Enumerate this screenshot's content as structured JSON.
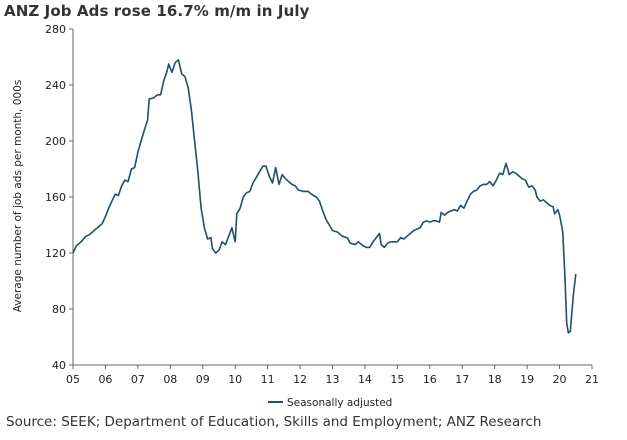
{
  "title": "ANZ Job Ads rose 16.7% m/m in July",
  "source": "Source: SEEK; Department of Education, Skills and Employment; ANZ Research",
  "chart_data": {
    "type": "line",
    "title": "ANZ Job Ads rose 16.7% m/m in July",
    "ylabel": "Average number of job ads per month, 000s",
    "xlabel": "",
    "ylim": [
      40,
      280
    ],
    "yticks": [
      40,
      80,
      120,
      160,
      200,
      240,
      280
    ],
    "xlim": [
      2005,
      2021
    ],
    "xticks": [
      2005,
      2006,
      2007,
      2008,
      2009,
      2010,
      2011,
      2012,
      2013,
      2014,
      2015,
      2016,
      2017,
      2018,
      2019,
      2020,
      2021
    ],
    "xtick_labels": [
      "05",
      "06",
      "07",
      "08",
      "09",
      "10",
      "11",
      "12",
      "13",
      "14",
      "15",
      "16",
      "17",
      "18",
      "19",
      "20",
      "21"
    ],
    "legend_position": "bottom",
    "grid": false,
    "series_color": "#1f4e6e",
    "series": [
      {
        "name": "Seasonally adjusted",
        "points": [
          [
            2005.0,
            120
          ],
          [
            2005.1,
            125
          ],
          [
            2005.25,
            128
          ],
          [
            2005.4,
            132
          ],
          [
            2005.5,
            133
          ],
          [
            2005.6,
            135
          ],
          [
            2005.75,
            138
          ],
          [
            2005.9,
            141
          ],
          [
            2006.0,
            146
          ],
          [
            2006.1,
            152
          ],
          [
            2006.2,
            157
          ],
          [
            2006.3,
            162
          ],
          [
            2006.4,
            161
          ],
          [
            2006.5,
            168
          ],
          [
            2006.6,
            172
          ],
          [
            2006.7,
            171
          ],
          [
            2006.8,
            180
          ],
          [
            2006.9,
            181
          ],
          [
            2007.0,
            192
          ],
          [
            2007.1,
            200
          ],
          [
            2007.2,
            208
          ],
          [
            2007.3,
            215
          ],
          [
            2007.35,
            230
          ],
          [
            2007.5,
            231
          ],
          [
            2007.6,
            233
          ],
          [
            2007.7,
            233
          ],
          [
            2007.8,
            243
          ],
          [
            2007.9,
            250
          ],
          [
            2007.95,
            255
          ],
          [
            2008.05,
            249
          ],
          [
            2008.15,
            256
          ],
          [
            2008.25,
            258
          ],
          [
            2008.35,
            248
          ],
          [
            2008.45,
            246
          ],
          [
            2008.55,
            238
          ],
          [
            2008.65,
            222
          ],
          [
            2008.75,
            200
          ],
          [
            2008.85,
            178
          ],
          [
            2008.95,
            152
          ],
          [
            2009.05,
            138
          ],
          [
            2009.15,
            130
          ],
          [
            2009.25,
            131
          ],
          [
            2009.3,
            123
          ],
          [
            2009.4,
            120
          ],
          [
            2009.5,
            122
          ],
          [
            2009.6,
            128
          ],
          [
            2009.7,
            126
          ],
          [
            2009.8,
            132
          ],
          [
            2009.9,
            138
          ],
          [
            2010.0,
            128
          ],
          [
            2010.05,
            148
          ],
          [
            2010.15,
            152
          ],
          [
            2010.25,
            160
          ],
          [
            2010.35,
            163
          ],
          [
            2010.45,
            164
          ],
          [
            2010.55,
            170
          ],
          [
            2010.65,
            174
          ],
          [
            2010.75,
            178
          ],
          [
            2010.85,
            182
          ],
          [
            2010.95,
            182
          ],
          [
            2011.05,
            175
          ],
          [
            2011.15,
            170
          ],
          [
            2011.25,
            181
          ],
          [
            2011.35,
            169
          ],
          [
            2011.45,
            176
          ],
          [
            2011.55,
            173
          ],
          [
            2011.65,
            171
          ],
          [
            2011.75,
            169
          ],
          [
            2011.85,
            168
          ],
          [
            2011.95,
            165
          ],
          [
            2012.1,
            164
          ],
          [
            2012.25,
            164
          ],
          [
            2012.35,
            162
          ],
          [
            2012.5,
            160
          ],
          [
            2012.6,
            157
          ],
          [
            2012.7,
            150
          ],
          [
            2012.8,
            144
          ],
          [
            2012.9,
            140
          ],
          [
            2013.0,
            136
          ],
          [
            2013.15,
            135
          ],
          [
            2013.3,
            132
          ],
          [
            2013.45,
            131
          ],
          [
            2013.55,
            127
          ],
          [
            2013.7,
            126
          ],
          [
            2013.8,
            128
          ],
          [
            2013.95,
            125
          ],
          [
            2014.05,
            124
          ],
          [
            2014.15,
            124
          ],
          [
            2014.25,
            128
          ],
          [
            2014.35,
            131
          ],
          [
            2014.45,
            134
          ],
          [
            2014.5,
            126
          ],
          [
            2014.6,
            124
          ],
          [
            2014.7,
            127
          ],
          [
            2014.8,
            128
          ],
          [
            2014.9,
            128
          ],
          [
            2015.0,
            128
          ],
          [
            2015.1,
            131
          ],
          [
            2015.2,
            130
          ],
          [
            2015.3,
            132
          ],
          [
            2015.4,
            134
          ],
          [
            2015.5,
            136
          ],
          [
            2015.6,
            137
          ],
          [
            2015.7,
            138
          ],
          [
            2015.8,
            142
          ],
          [
            2015.9,
            143
          ],
          [
            2016.0,
            142
          ],
          [
            2016.1,
            143
          ],
          [
            2016.2,
            143
          ],
          [
            2016.3,
            142
          ],
          [
            2016.35,
            149
          ],
          [
            2016.45,
            147
          ],
          [
            2016.55,
            149
          ],
          [
            2016.65,
            150
          ],
          [
            2016.75,
            151
          ],
          [
            2016.85,
            150
          ],
          [
            2016.95,
            154
          ],
          [
            2017.05,
            152
          ],
          [
            2017.15,
            157
          ],
          [
            2017.25,
            162
          ],
          [
            2017.35,
            164
          ],
          [
            2017.45,
            165
          ],
          [
            2017.55,
            168
          ],
          [
            2017.65,
            169
          ],
          [
            2017.75,
            169
          ],
          [
            2017.85,
            171
          ],
          [
            2017.95,
            168
          ],
          [
            2018.05,
            172
          ],
          [
            2018.15,
            177
          ],
          [
            2018.25,
            176
          ],
          [
            2018.35,
            184
          ],
          [
            2018.45,
            176
          ],
          [
            2018.55,
            178
          ],
          [
            2018.65,
            177
          ],
          [
            2018.75,
            175
          ],
          [
            2018.85,
            173
          ],
          [
            2018.95,
            172
          ],
          [
            2019.05,
            167
          ],
          [
            2019.15,
            168
          ],
          [
            2019.25,
            165
          ],
          [
            2019.3,
            160
          ],
          [
            2019.4,
            157
          ],
          [
            2019.5,
            158
          ],
          [
            2019.6,
            156
          ],
          [
            2019.7,
            154
          ],
          [
            2019.8,
            153
          ],
          [
            2019.85,
            148
          ],
          [
            2019.95,
            151
          ],
          [
            2020.0,
            147
          ],
          [
            2020.1,
            135
          ],
          [
            2020.17,
            100
          ],
          [
            2020.22,
            70
          ],
          [
            2020.27,
            63
          ],
          [
            2020.33,
            64
          ],
          [
            2020.42,
            89
          ],
          [
            2020.5,
            105
          ]
        ]
      }
    ]
  }
}
